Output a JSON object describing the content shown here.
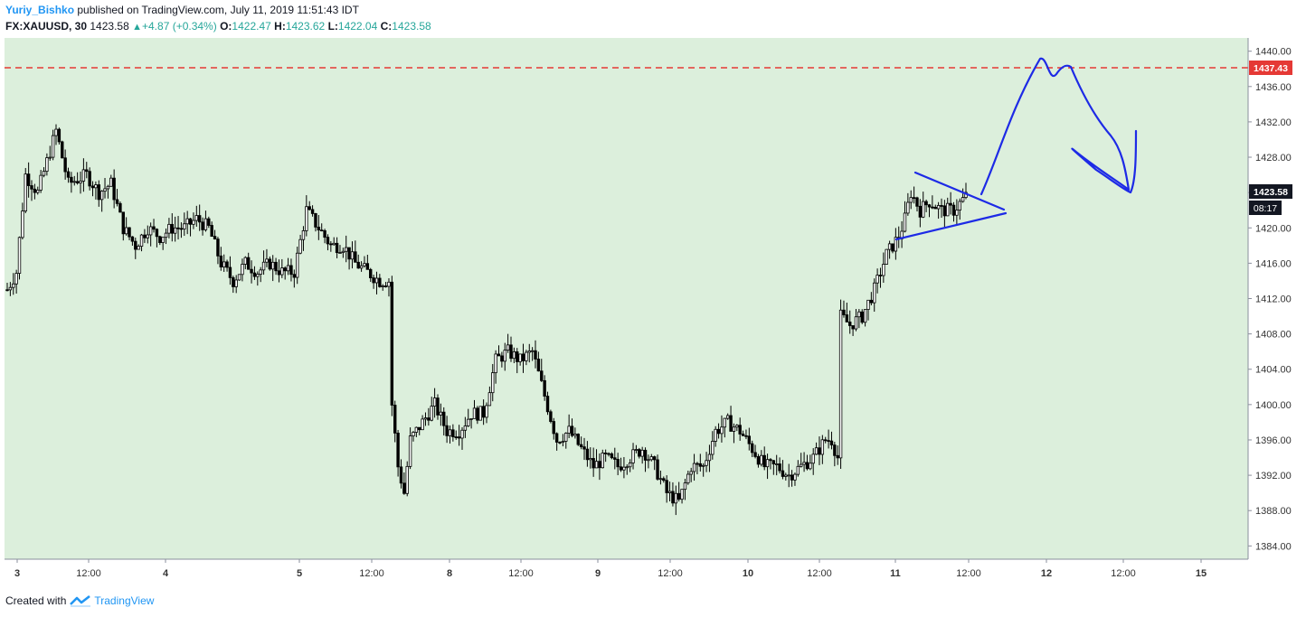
{
  "header": {
    "author": "Yuriy_Bishko",
    "published": "published on TradingView.com, July 11, 2019 11:51:43 IDT"
  },
  "symbol_bar": {
    "symbol": "FX:XAUUSD, 30",
    "last": "1423.58",
    "change": "+4.87 (+0.34%)",
    "o_label": "O:",
    "o": "1422.47",
    "h_label": "H:",
    "h": "1423.62",
    "l_label": "L:",
    "l": "1422.04",
    "c_label": "C:",
    "c": "1423.58"
  },
  "footer": {
    "created": "Created with",
    "brand": "TradingView"
  },
  "colors": {
    "plot_bg": "#dcefdc",
    "resistance": "#e53935",
    "drawing": "#1d2ae6",
    "up": "#26a69a",
    "brand": "#2196f3"
  },
  "icons": [
    "triangle-up-icon",
    "tradingview-logo-icon"
  ],
  "chart_data": {
    "type": "candlestick",
    "symbol": "FX:XAUUSD",
    "interval": "30",
    "y_ticks": [
      "1440.00",
      "1436.00",
      "1432.00",
      "1428.00",
      "1424.00",
      "1420.00",
      "1416.00",
      "1412.00",
      "1408.00",
      "1404.00",
      "1400.00",
      "1396.00",
      "1392.00",
      "1388.00",
      "1384.00"
    ],
    "x_ticks": [
      "3",
      "12:00",
      "4",
      "5",
      "12:00",
      "8",
      "12:00",
      "9",
      "12:00",
      "10",
      "12:00",
      "11",
      "12:00",
      "12",
      "12:00",
      "15"
    ],
    "ylim": [
      1382.5,
      1441.5
    ],
    "resistance": {
      "value": 1437.43,
      "label": "1437.43"
    },
    "last_price": {
      "value": 1423.58,
      "label": "1423.58",
      "countdown": "08:17"
    },
    "close_path": [
      [
        0,
        1413
      ],
      [
        3,
        1415
      ],
      [
        6,
        1426
      ],
      [
        10,
        1424
      ],
      [
        16,
        1431
      ],
      [
        20,
        1425
      ],
      [
        26,
        1426
      ],
      [
        30,
        1424
      ],
      [
        34,
        1425
      ],
      [
        38,
        1420
      ],
      [
        42,
        1418
      ],
      [
        46,
        1420
      ],
      [
        50,
        1419
      ],
      [
        54,
        1420
      ],
      [
        58,
        1420
      ],
      [
        62,
        1421
      ],
      [
        66,
        1420
      ],
      [
        70,
        1416
      ],
      [
        74,
        1414
      ],
      [
        78,
        1416
      ],
      [
        82,
        1415
      ],
      [
        86,
        1416
      ],
      [
        90,
        1415
      ],
      [
        94,
        1415
      ],
      [
        98,
        1422
      ],
      [
        102,
        1420
      ],
      [
        106,
        1418
      ],
      [
        110,
        1418
      ],
      [
        114,
        1416
      ],
      [
        118,
        1415
      ],
      [
        122,
        1414
      ],
      [
        125,
        1414
      ],
      [
        126,
        1400
      ],
      [
        128,
        1393
      ],
      [
        130,
        1390
      ],
      [
        132,
        1396
      ],
      [
        136,
        1398
      ],
      [
        140,
        1400
      ],
      [
        144,
        1397
      ],
      [
        148,
        1397
      ],
      [
        152,
        1399
      ],
      [
        156,
        1399
      ],
      [
        160,
        1405
      ],
      [
        164,
        1406
      ],
      [
        168,
        1405
      ],
      [
        172,
        1406
      ],
      [
        176,
        1401
      ],
      [
        180,
        1396
      ],
      [
        184,
        1397
      ],
      [
        188,
        1395
      ],
      [
        192,
        1393
      ],
      [
        196,
        1394
      ],
      [
        200,
        1393
      ],
      [
        204,
        1394
      ],
      [
        208,
        1395
      ],
      [
        212,
        1393
      ],
      [
        216,
        1390
      ],
      [
        220,
        1389
      ],
      [
        224,
        1393
      ],
      [
        228,
        1393
      ],
      [
        232,
        1397
      ],
      [
        236,
        1398
      ],
      [
        240,
        1397
      ],
      [
        244,
        1395
      ],
      [
        248,
        1393
      ],
      [
        252,
        1393
      ],
      [
        256,
        1392
      ],
      [
        260,
        1393
      ],
      [
        264,
        1394
      ],
      [
        268,
        1396
      ],
      [
        270,
        1396
      ],
      [
        272,
        1394
      ],
      [
        273,
        1410
      ],
      [
        276,
        1409
      ],
      [
        280,
        1410
      ],
      [
        284,
        1413
      ],
      [
        288,
        1417
      ],
      [
        292,
        1419
      ],
      [
        294,
        1421
      ],
      [
        296,
        1424
      ],
      [
        299,
        1422
      ],
      [
        302,
        1423
      ],
      [
        306,
        1422
      ],
      [
        310,
        1422
      ],
      [
        314,
        1423.58
      ]
    ]
  }
}
